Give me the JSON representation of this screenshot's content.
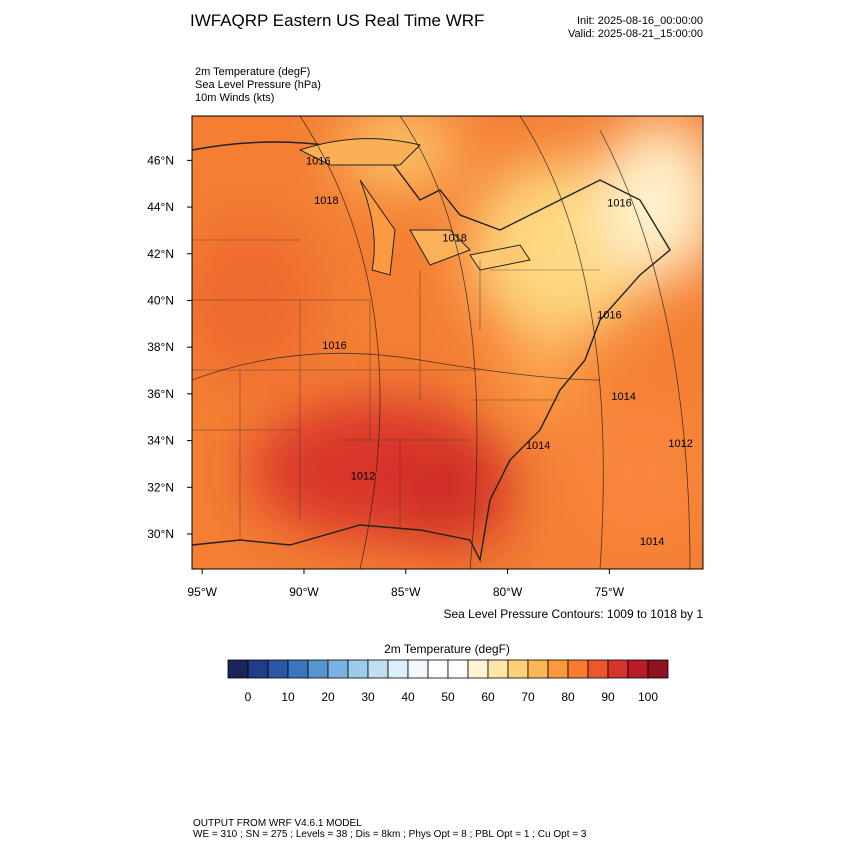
{
  "header": {
    "title": "IWFAQRP Eastern US Real Time WRF",
    "init": "Init: 2025-08-16_00:00:00",
    "valid": "Valid: 2025-08-21_15:00:00",
    "fields": [
      "2m Temperature   (degF)",
      "Sea Level Pressure   (hPa)",
      "10m Winds   (kts)"
    ]
  },
  "map": {
    "lonlim": [
      -95.5,
      -70.4
    ],
    "latlim": [
      28.5,
      47.9
    ],
    "lonticks": [
      {
        "value": -95,
        "label": "95°W"
      },
      {
        "value": -90,
        "label": "90°W"
      },
      {
        "value": -85,
        "label": "85°W"
      },
      {
        "value": -80,
        "label": "80°W"
      },
      {
        "value": -75,
        "label": "75°W"
      }
    ],
    "latticks": [
      {
        "value": 30,
        "label": "30°N"
      },
      {
        "value": 32,
        "label": "32°N"
      },
      {
        "value": 34,
        "label": "34°N"
      },
      {
        "value": 36,
        "label": "36°N"
      },
      {
        "value": 38,
        "label": "38°N"
      },
      {
        "value": 40,
        "label": "40°N"
      },
      {
        "value": 42,
        "label": "42°N"
      },
      {
        "value": 44,
        "label": "44°N"
      },
      {
        "value": 46,
        "label": "46°N"
      }
    ],
    "contour_labels": [
      {
        "label": "1016",
        "lon": -89.3,
        "lat": 46.0
      },
      {
        "label": "1018",
        "lon": -88.9,
        "lat": 44.3
      },
      {
        "label": "1018",
        "lon": -82.6,
        "lat": 42.7
      },
      {
        "label": "1016",
        "lon": -74.5,
        "lat": 44.2
      },
      {
        "label": "1016",
        "lon": -75.0,
        "lat": 39.4
      },
      {
        "label": "1016",
        "lon": -88.5,
        "lat": 38.1
      },
      {
        "label": "1014",
        "lon": -74.3,
        "lat": 35.9
      },
      {
        "label": "1014",
        "lon": -78.5,
        "lat": 33.8
      },
      {
        "label": "1012",
        "lon": -71.5,
        "lat": 33.9
      },
      {
        "label": "1012",
        "lon": -87.1,
        "lat": 32.5
      },
      {
        "label": "1014",
        "lon": -72.9,
        "lat": 29.7
      }
    ],
    "contour_note": "Sea Level Pressure Contours: 1009 to 1018 by 1"
  },
  "colorbar": {
    "title": "2m Temperature  (degF)",
    "ticks": [
      0,
      10,
      20,
      30,
      40,
      50,
      60,
      70,
      80,
      90,
      100
    ],
    "step": 5,
    "colors": [
      "#18265a",
      "#1f3d88",
      "#2a58a6",
      "#3a76c0",
      "#5695d0",
      "#7ab3e1",
      "#9dcbea",
      "#c0e0f2",
      "#dcEFF8",
      "#f1f8fb",
      "#ffffff",
      "#ffffff",
      "#fff4d4",
      "#fee6a6",
      "#fed07a",
      "#fdb655",
      "#fc993d",
      "#f87a2f",
      "#eb582b",
      "#d6332a",
      "#bb1d26",
      "#8d1420"
    ]
  },
  "footer": [
    "OUTPUT FROM WRF V4.6.1 MODEL",
    "WE = 310 ; SN = 275 ; Levels = 38 ; Dis = 8km ; Phys Opt = 8 ; PBL Opt = 1 ; Cu Opt = 3"
  ]
}
